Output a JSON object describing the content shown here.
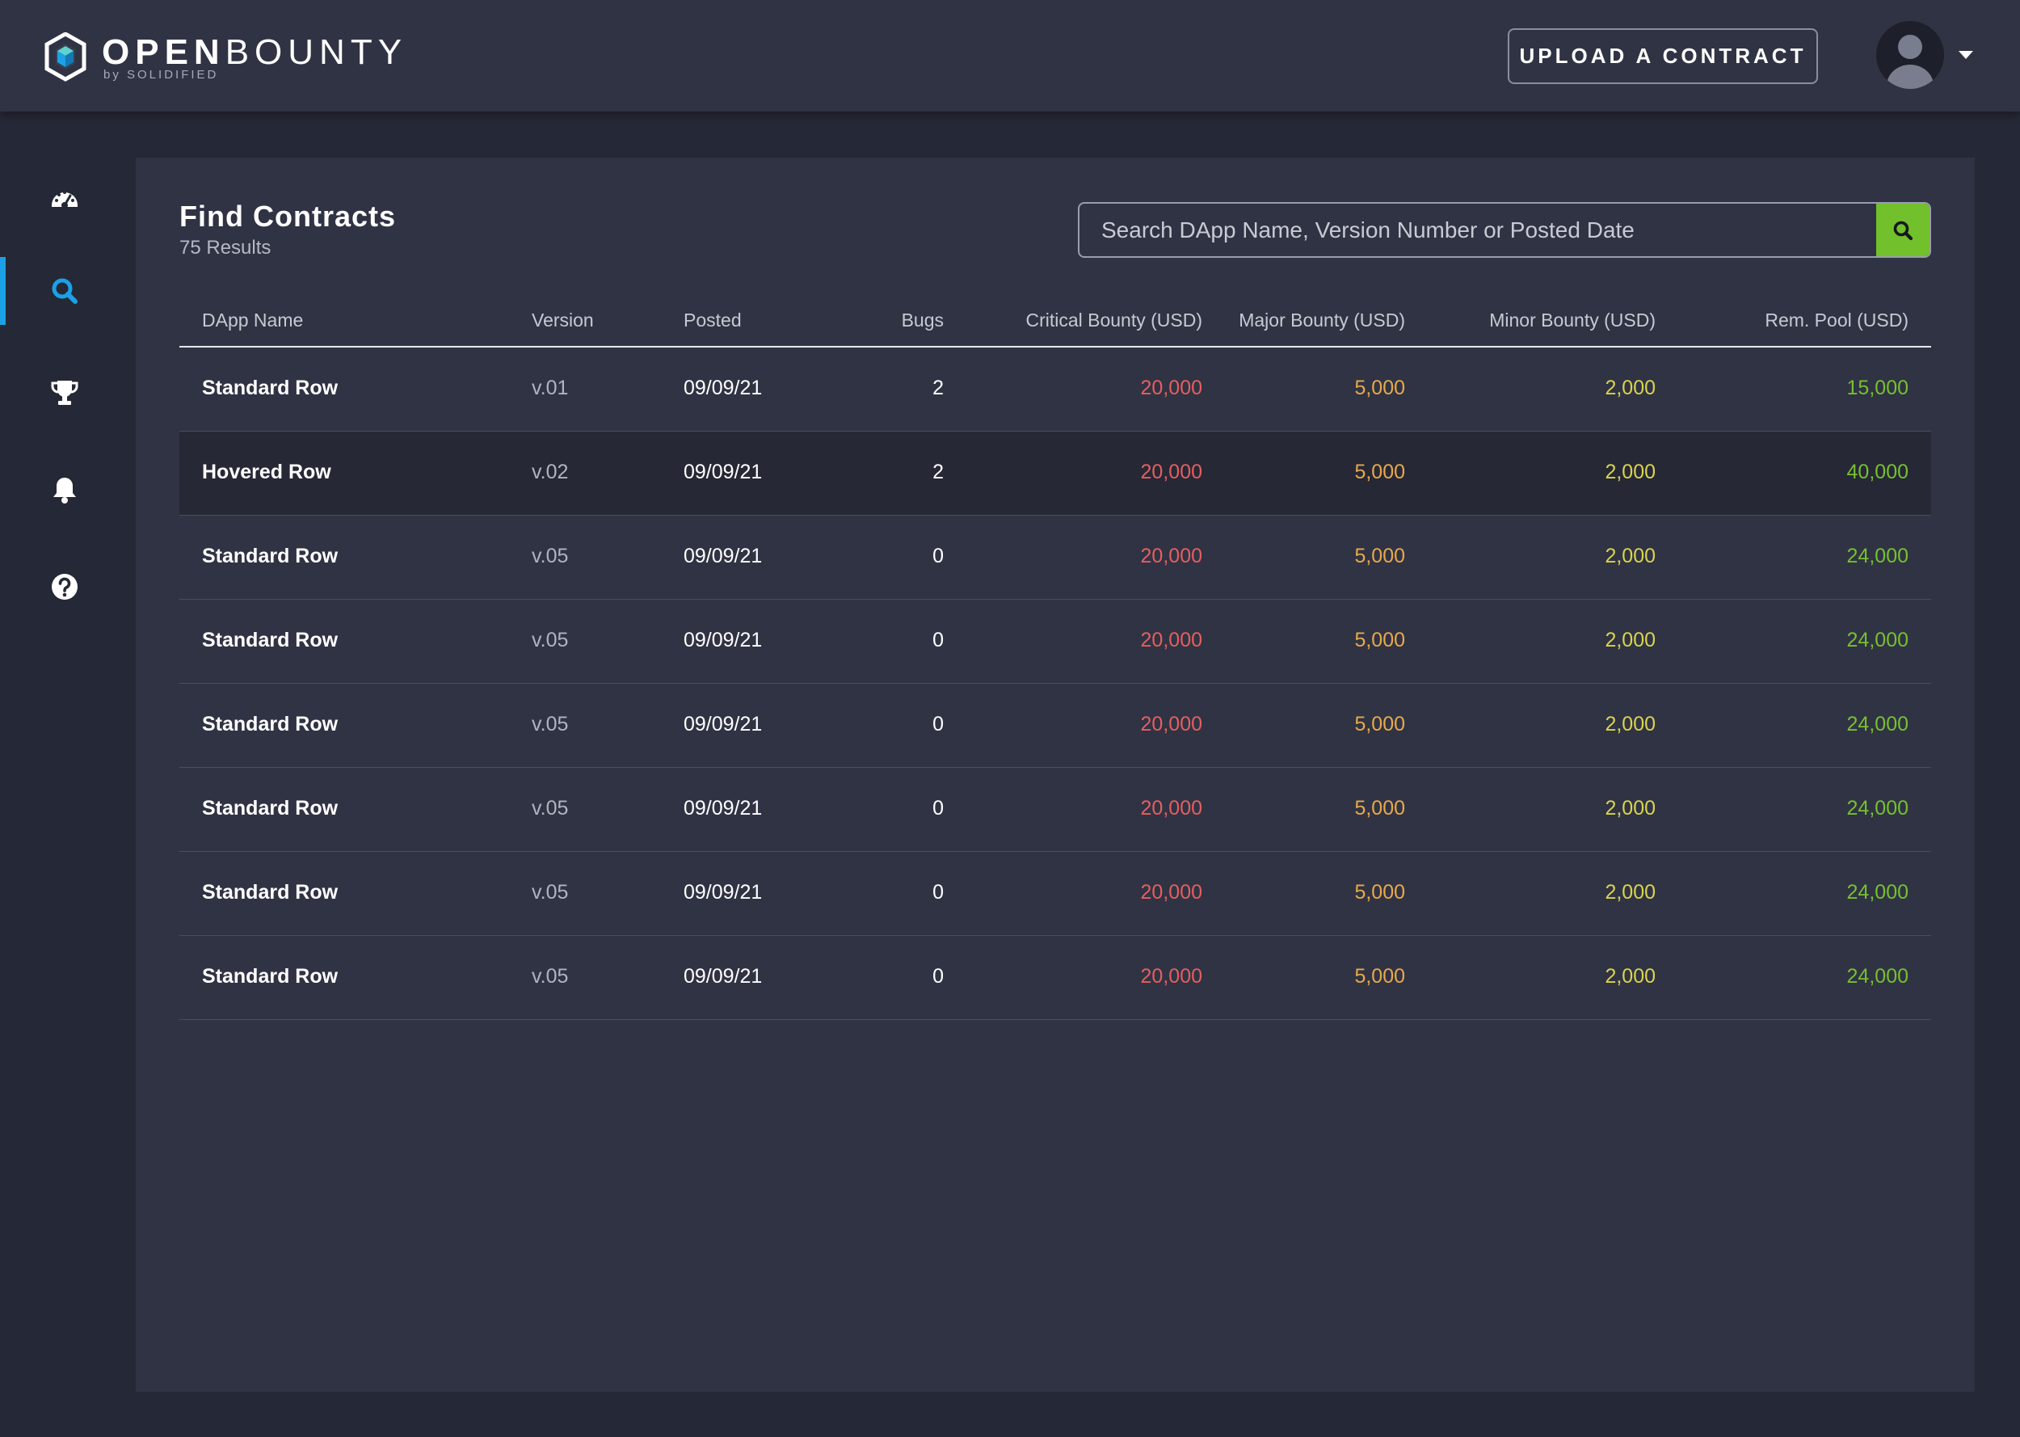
{
  "brand": {
    "word_bold": "OPEN",
    "word_light": "BOUNTY",
    "tagline": "by SOLIDIFIED"
  },
  "header": {
    "upload_label": "UPLOAD A CONTRACT"
  },
  "sidebar": {
    "items": [
      {
        "icon": "dashboard-icon",
        "active": false
      },
      {
        "icon": "search-icon",
        "active": true
      },
      {
        "icon": "trophy-icon",
        "active": false
      },
      {
        "icon": "bell-icon",
        "active": false
      },
      {
        "icon": "help-icon",
        "active": false
      }
    ]
  },
  "main": {
    "title": "Find Contracts",
    "results": "75 Results",
    "search": {
      "placeholder": "Search DApp Name, Version Number or Posted Date",
      "value": ""
    },
    "table": {
      "headers": {
        "name": "DApp Name",
        "version": "Version",
        "posted": "Posted",
        "bugs": "Bugs",
        "critical": "Critical Bounty (USD)",
        "major": "Major Bounty (USD)",
        "minor": "Minor Bounty (USD)",
        "pool": "Rem. Pool (USD)"
      },
      "rows": [
        {
          "name": "Standard Row",
          "version": "v.01",
          "posted": "09/09/21",
          "bugs": "2",
          "critical": "20,000",
          "major": "5,000",
          "minor": "2,000",
          "pool": "15,000"
        },
        {
          "name": "Hovered Row",
          "version": "v.02",
          "posted": "09/09/21",
          "bugs": "2",
          "critical": "20,000",
          "major": "5,000",
          "minor": "2,000",
          "pool": "40,000"
        },
        {
          "name": "Standard Row",
          "version": "v.05",
          "posted": "09/09/21",
          "bugs": "0",
          "critical": "20,000",
          "major": "5,000",
          "minor": "2,000",
          "pool": "24,000"
        },
        {
          "name": "Standard Row",
          "version": "v.05",
          "posted": "09/09/21",
          "bugs": "0",
          "critical": "20,000",
          "major": "5,000",
          "minor": "2,000",
          "pool": "24,000"
        },
        {
          "name": "Standard Row",
          "version": "v.05",
          "posted": "09/09/21",
          "bugs": "0",
          "critical": "20,000",
          "major": "5,000",
          "minor": "2,000",
          "pool": "24,000"
        },
        {
          "name": "Standard Row",
          "version": "v.05",
          "posted": "09/09/21",
          "bugs": "0",
          "critical": "20,000",
          "major": "5,000",
          "minor": "2,000",
          "pool": "24,000"
        },
        {
          "name": "Standard Row",
          "version": "v.05",
          "posted": "09/09/21",
          "bugs": "0",
          "critical": "20,000",
          "major": "5,000",
          "minor": "2,000",
          "pool": "24,000"
        },
        {
          "name": "Standard Row",
          "version": "v.05",
          "posted": "09/09/21",
          "bugs": "0",
          "critical": "20,000",
          "major": "5,000",
          "minor": "2,000",
          "pool": "24,000"
        }
      ]
    }
  },
  "colors": {
    "accent": "#1ba1e6",
    "search_button": "#72c02c",
    "critical": "#e45f5f",
    "major": "#e9a94a",
    "minor": "#d9d44c",
    "pool": "#76c12e"
  }
}
